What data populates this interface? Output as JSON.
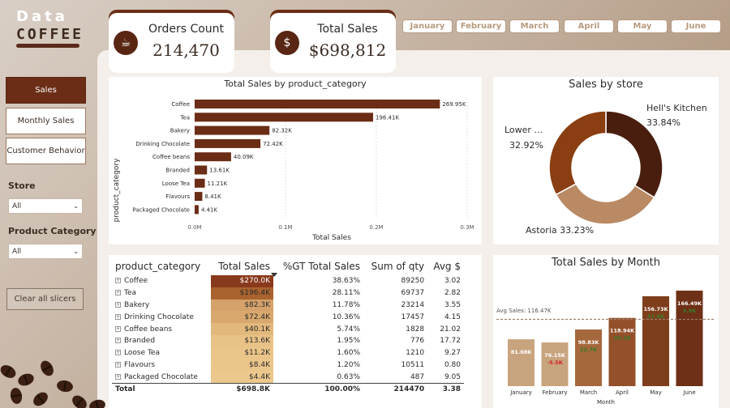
{
  "logo": {
    "line1": "Data",
    "line2": "COFFEE"
  },
  "kpis": {
    "orders": {
      "title": "Orders Count",
      "value": "214,470"
    },
    "sales": {
      "title": "Total Sales",
      "value": "$698,812"
    }
  },
  "months": [
    "January",
    "February",
    "March",
    "April",
    "May",
    "June"
  ],
  "nav": {
    "items": [
      "Sales",
      "Monthly Sales",
      "Customer Behavior"
    ]
  },
  "slicers": {
    "store": {
      "title": "Store",
      "value": "All"
    },
    "category": {
      "title": "Product Category",
      "value": "All"
    },
    "clear": "Clear all slicers"
  },
  "bar_chart": {
    "title": "Total Sales by product_category",
    "xlabel": "Total Sales",
    "ylabel": "product_category",
    "ticks": [
      "0.0M",
      "0.1M",
      "0.2M",
      "0.3M"
    ],
    "colors": {
      "bar": "#6b2d16"
    }
  },
  "donut": {
    "title": "Sales by store",
    "labels": [
      {
        "name": "Hell's Kitchen",
        "pct": "33.84%"
      },
      {
        "name": "Lower ...",
        "pct": "32.92%"
      },
      {
        "name": "Astoria",
        "pct": "33.23%"
      }
    ],
    "colors": [
      "#4a1e0e",
      "#8a3e12",
      "#b98a64"
    ]
  },
  "table": {
    "headers": [
      "product_category",
      "Total Sales",
      "%GT Total Sales",
      "Sum of qty",
      "Avg $"
    ],
    "rows": [
      {
        "cat": "Coffee",
        "sales": "$270.0K",
        "pct": "38.63%",
        "qty": "89250",
        "avg": "3.02",
        "bg": "#8a3a1c",
        "fg": "#ffffff"
      },
      {
        "cat": "Tea",
        "sales": "$196.4K",
        "pct": "28.11%",
        "qty": "69737",
        "avg": "2.82",
        "bg": "#a9632e",
        "fg": "#2b2b2b"
      },
      {
        "cat": "Bakery",
        "sales": "$82.3K",
        "pct": "11.78%",
        "qty": "23214",
        "avg": "3.55",
        "bg": "#d4a26a",
        "fg": "#2b2b2b"
      },
      {
        "cat": "Drinking Chocolate",
        "sales": "$72.4K",
        "pct": "10.36%",
        "qty": "17457",
        "avg": "4.15",
        "bg": "#d8a86e",
        "fg": "#2b2b2b"
      },
      {
        "cat": "Coffee beans",
        "sales": "$40.1K",
        "pct": "5.74%",
        "qty": "1828",
        "avg": "21.02",
        "bg": "#e2b87c",
        "fg": "#2b2b2b"
      },
      {
        "cat": "Branded",
        "sales": "$13.6K",
        "pct": "1.95%",
        "qty": "776",
        "avg": "17.72",
        "bg": "#e9c287",
        "fg": "#2b2b2b"
      },
      {
        "cat": "Loose Tea",
        "sales": "$11.2K",
        "pct": "1.60%",
        "qty": "1210",
        "avg": "9.27",
        "bg": "#eac489",
        "fg": "#2b2b2b"
      },
      {
        "cat": "Flavours",
        "sales": "$8.4K",
        "pct": "1.20%",
        "qty": "10511",
        "avg": "0.80",
        "bg": "#ebc68b",
        "fg": "#2b2b2b"
      },
      {
        "cat": "Packaged Chocolate",
        "sales": "$4.4K",
        "pct": "0.63%",
        "qty": "487",
        "avg": "9.05",
        "bg": "#ecc88d",
        "fg": "#2b2b2b"
      }
    ],
    "total": {
      "label": "Total",
      "sales": "$698.8K",
      "pct": "100.00%",
      "qty": "214470",
      "avg": "3.38"
    }
  },
  "month_chart": {
    "title": "Total Sales by Month",
    "avg_label": "Avg Sales: 116.47K",
    "xlabel": "Month",
    "colors": {
      "bar": "#c8a47e",
      "dark": "#8a3e1a",
      "pos": "#3a7a2a",
      "neg": "#d02020"
    }
  },
  "chart_data": [
    {
      "type": "bar",
      "orientation": "horizontal",
      "title": "Total Sales by product_category",
      "xlabel": "Total Sales",
      "ylabel": "product_category",
      "xlim": [
        0,
        300000
      ],
      "categories": [
        "Coffee",
        "Tea",
        "Bakery",
        "Drinking Chocolate",
        "Coffee beans",
        "Branded",
        "Loose Tea",
        "Flavours",
        "Packaged Chocolate"
      ],
      "values": [
        269950,
        196410,
        82320,
        72420,
        40090,
        13610,
        11210,
        8410,
        4410
      ],
      "labels": [
        "269.95K",
        "196.41K",
        "82.32K",
        "72.42K",
        "40.09K",
        "13.61K",
        "11.21K",
        "8.41K",
        "4.41K"
      ]
    },
    {
      "type": "pie",
      "title": "Sales by store",
      "categories": [
        "Hell's Kitchen",
        "Lower ...",
        "Astoria"
      ],
      "values": [
        33.84,
        32.92,
        33.23
      ]
    },
    {
      "type": "bar",
      "title": "Total Sales by Month",
      "xlabel": "Month",
      "categories": [
        "January",
        "February",
        "March",
        "April",
        "May",
        "June"
      ],
      "values": [
        81680,
        76150,
        98830,
        118940,
        156730,
        166490
      ],
      "labels": [
        "81.68K",
        "76.15K",
        "98.83K",
        "118.94K",
        "156.73K",
        "166.49K"
      ],
      "deltas": [
        "",
        "-5.5K",
        "22.7K",
        "20.1K",
        "37.8K",
        "9.8K"
      ],
      "avg": 116470,
      "ylim": [
        0,
        175000
      ]
    }
  ]
}
